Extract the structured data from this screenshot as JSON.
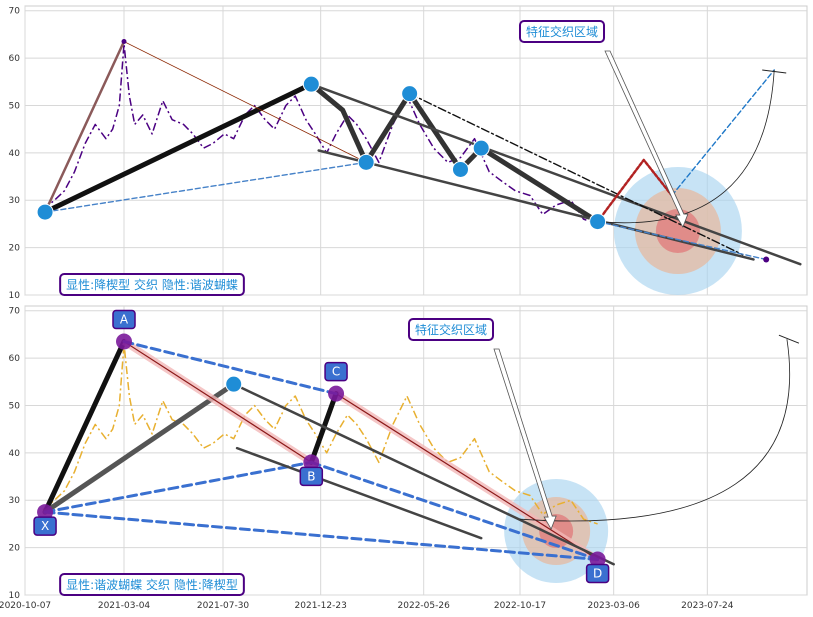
{
  "chart_data": [
    {
      "type": "line",
      "panel": "top",
      "xlim": [
        "2020-10-07",
        "2023-12-20"
      ],
      "ylim": [
        10,
        71
      ],
      "yticks": [
        10,
        20,
        30,
        40,
        50,
        60,
        70
      ],
      "grid": true,
      "series": [
        {
          "style": "dash-dot",
          "color": "#4b0082",
          "x": [
            "2020-11-03",
            "2020-11-20",
            "2020-12-05",
            "2020-12-20",
            "2021-01-05",
            "2021-01-20",
            "2021-02-05",
            "2021-02-15",
            "2021-02-25",
            "2021-03-04",
            "2021-03-12",
            "2021-03-20",
            "2021-04-01",
            "2021-04-15",
            "2021-05-01",
            "2021-05-15",
            "2021-06-01",
            "2021-06-15",
            "2021-07-01",
            "2021-07-15",
            "2021-08-01",
            "2021-08-15",
            "2021-09-01",
            "2021-09-15",
            "2021-10-01",
            "2021-10-15",
            "2021-11-01",
            "2021-11-15",
            "2021-12-01",
            "2021-12-15",
            "2022-01-01",
            "2022-01-15",
            "2022-02-01",
            "2022-02-15",
            "2022-03-01",
            "2022-03-20",
            "2022-04-10",
            "2022-05-01",
            "2022-05-20",
            "2022-06-10",
            "2022-07-01",
            "2022-07-20",
            "2022-08-10",
            "2022-09-01",
            "2022-09-20",
            "2022-10-10",
            "2022-11-01",
            "2022-11-20",
            "2022-12-10",
            "2023-01-01",
            "2023-01-20",
            "2023-02-10"
          ],
          "y": [
            28,
            30,
            32,
            36,
            42,
            46,
            43,
            45,
            50,
            63,
            52,
            46,
            48,
            44,
            51,
            47,
            46,
            44,
            41,
            42,
            44,
            43,
            48,
            50,
            47,
            45,
            50,
            52,
            47,
            44,
            40,
            44,
            48,
            46,
            43,
            38,
            46,
            52,
            46,
            41,
            38,
            39,
            43,
            36,
            34,
            32,
            31,
            27,
            29,
            30,
            26,
            25
          ]
        }
      ],
      "pattern_lines": [
        {
          "style": "solid-thick",
          "color": "#111111",
          "points": [
            [
              "2020-11-06",
              27.5
            ],
            [
              "2021-12-09",
              54.5
            ]
          ]
        },
        {
          "style": "solid",
          "color": "#8b5a5a",
          "points": [
            [
              "2020-11-06",
              27.5
            ],
            [
              "2021-03-04",
              63.5
            ]
          ]
        },
        {
          "style": "thin",
          "color": "#8b2500",
          "points": [
            [
              "2021-03-04",
              63.5
            ],
            [
              "2022-03-01",
              38
            ]
          ]
        },
        {
          "style": "dashed",
          "color": "#4682c8",
          "points": [
            [
              "2020-11-06",
              27.5
            ],
            [
              "2022-03-01",
              38
            ]
          ]
        },
        {
          "style": "solid-thick",
          "color": "#333333",
          "points": [
            [
              "2021-12-09",
              54.5
            ],
            [
              "2022-01-25",
              49
            ],
            [
              "2022-03-01",
              38
            ],
            [
              "2022-05-05",
              52.5
            ],
            [
              "2022-07-20",
              36.5
            ],
            [
              "2022-08-20",
              41
            ],
            [
              "2023-02-10",
              25.5
            ]
          ]
        },
        {
          "style": "solid",
          "color": "#444444",
          "points": [
            [
              "2021-12-09",
              54.5
            ],
            [
              "2023-12-10",
              16.5
            ]
          ]
        },
        {
          "style": "solid",
          "color": "#444444",
          "points": [
            [
              "2021-12-20",
              40.5
            ],
            [
              "2023-10-01",
              17.5
            ]
          ]
        },
        {
          "style": "dash-dot",
          "color": "#111111",
          "points": [
            [
              "2022-05-05",
              52.5
            ],
            [
              "2023-09-15",
              18.5
            ]
          ]
        },
        {
          "style": "dashed",
          "color": "#4682c8",
          "points": [
            [
              "2023-02-10",
              25.5
            ],
            [
              "2023-10-20",
              17.5
            ]
          ]
        },
        {
          "style": "dotted",
          "color": "#b22222",
          "points": [
            [
              "2023-02-10",
              25.5
            ],
            [
              "2023-04-20",
              38.5
            ],
            [
              "2023-06-01",
              31
            ]
          ]
        },
        {
          "style": "dashed",
          "color": "#1f78c8",
          "points": [
            [
              "2023-06-01",
              31
            ],
            [
              "2023-11-01",
              57.5
            ]
          ]
        }
      ],
      "key_points": [
        {
          "x": "2020-11-06",
          "y": 27.5
        },
        {
          "x": "2021-12-09",
          "y": 54.5
        },
        {
          "x": "2022-03-01",
          "y": 38
        },
        {
          "x": "2022-05-05",
          "y": 52.5
        },
        {
          "x": "2022-07-20",
          "y": 36.5
        },
        {
          "x": "2022-08-20",
          "y": 41
        },
        {
          "x": "2023-02-10",
          "y": 25.5
        }
      ],
      "end_point": {
        "x": "2023-10-20",
        "y": 17.5
      },
      "zone": {
        "x": "2023-06-10",
        "y": 23.5
      },
      "annotation": "特征交织区域",
      "footer_label": "显性:降楔型 交织 隐性:谐波蝴蝶"
    },
    {
      "type": "line",
      "panel": "bottom",
      "xlim": [
        "2020-10-07",
        "2023-12-20"
      ],
      "ylim": [
        10,
        71
      ],
      "yticks": [
        10,
        20,
        30,
        40,
        50,
        60,
        70
      ],
      "xticks": [
        "2020-10-07",
        "2021-03-04",
        "2021-07-30",
        "2021-12-23",
        "2022-05-26",
        "2022-10-17",
        "2023-03-06",
        "2023-07-24"
      ],
      "grid": true,
      "series": [
        {
          "style": "dash-dot",
          "color": "#e8b030",
          "x": [
            "2020-11-03",
            "2020-11-20",
            "2020-12-05",
            "2020-12-20",
            "2021-01-05",
            "2021-01-20",
            "2021-02-05",
            "2021-02-15",
            "2021-02-25",
            "2021-03-04",
            "2021-03-12",
            "2021-03-20",
            "2021-04-01",
            "2021-04-15",
            "2021-05-01",
            "2021-05-15",
            "2021-06-01",
            "2021-06-15",
            "2021-07-01",
            "2021-07-15",
            "2021-08-01",
            "2021-08-15",
            "2021-09-01",
            "2021-09-15",
            "2021-10-01",
            "2021-10-15",
            "2021-11-01",
            "2021-11-15",
            "2021-12-01",
            "2021-12-15",
            "2022-01-01",
            "2022-01-15",
            "2022-02-01",
            "2022-02-15",
            "2022-03-01",
            "2022-03-20",
            "2022-04-10",
            "2022-05-01",
            "2022-05-20",
            "2022-06-10",
            "2022-07-01",
            "2022-07-20",
            "2022-08-10",
            "2022-09-01",
            "2022-09-20",
            "2022-10-10",
            "2022-11-01",
            "2022-11-20",
            "2022-12-10",
            "2023-01-01",
            "2023-01-20",
            "2023-02-10"
          ],
          "y": [
            28,
            30,
            32,
            36,
            42,
            46,
            43,
            45,
            50,
            63,
            52,
            46,
            48,
            44,
            51,
            47,
            46,
            44,
            41,
            42,
            44,
            43,
            48,
            50,
            47,
            45,
            50,
            52,
            47,
            44,
            40,
            44,
            48,
            46,
            43,
            38,
            46,
            52,
            46,
            41,
            38,
            39,
            43,
            36,
            34,
            32,
            31,
            27,
            29,
            30,
            26,
            25
          ]
        }
      ],
      "pattern_lines": [
        {
          "style": "solid-thick",
          "color": "#111111",
          "points": [
            [
              "2020-11-06",
              27.5
            ],
            [
              "2021-03-04",
              63.5
            ]
          ]
        },
        {
          "style": "solid-thick",
          "color": "#555555",
          "points": [
            [
              "2020-11-06",
              27.5
            ],
            [
              "2021-08-15",
              54.5
            ]
          ]
        },
        {
          "style": "solid",
          "color": "#e89090",
          "points": [
            [
              "2021-03-04",
              63.5
            ],
            [
              "2021-12-09",
              38
            ]
          ]
        },
        {
          "style": "solid",
          "color": "#e89090",
          "points": [
            [
              "2022-01-15",
              52.5
            ],
            [
              "2023-02-10",
              17.5
            ]
          ]
        },
        {
          "style": "solid-thick",
          "color": "#111111",
          "points": [
            [
              "2021-12-09",
              38
            ],
            [
              "2022-01-15",
              52.5
            ]
          ]
        },
        {
          "style": "dashed-thick",
          "color": "#3a70d0",
          "points": [
            [
              "2021-03-04",
              63.5
            ],
            [
              "2022-01-15",
              52.5
            ]
          ]
        },
        {
          "style": "dashed-thick",
          "color": "#3a70d0",
          "points": [
            [
              "2020-11-06",
              27.5
            ],
            [
              "2021-12-09",
              38
            ]
          ]
        },
        {
          "style": "dashed-thick",
          "color": "#3a70d0",
          "points": [
            [
              "2020-11-06",
              27.5
            ],
            [
              "2023-02-10",
              17.5
            ]
          ]
        },
        {
          "style": "dashed-thick",
          "color": "#3a70d0",
          "points": [
            [
              "2021-12-09",
              38
            ],
            [
              "2023-02-10",
              17.5
            ]
          ]
        },
        {
          "style": "solid",
          "color": "#444444",
          "points": [
            [
              "2021-08-15",
              54.5
            ],
            [
              "2023-03-06",
              16.5
            ]
          ]
        },
        {
          "style": "solid",
          "color": "#444444",
          "points": [
            [
              "2021-08-20",
              41
            ],
            [
              "2022-08-20",
              22
            ]
          ]
        }
      ],
      "key_points": [
        {
          "label": "X",
          "x": "2020-11-06",
          "y": 27.5
        },
        {
          "label": "A",
          "x": "2021-03-04",
          "y": 63.5
        },
        {
          "label": "B",
          "x": "2021-12-09",
          "y": 38
        },
        {
          "label": "C",
          "x": "2022-01-15",
          "y": 52.5
        },
        {
          "label": "D",
          "x": "2023-02-10",
          "y": 17.5
        }
      ],
      "extra_points": [
        {
          "x": "2021-08-15",
          "y": 54.5
        }
      ],
      "zone": {
        "x": "2022-12-10",
        "y": 23.5
      },
      "annotation": "特征交织区域",
      "footer_label": "显性:谐波蝴蝶 交织 隐性:降楔型"
    }
  ]
}
